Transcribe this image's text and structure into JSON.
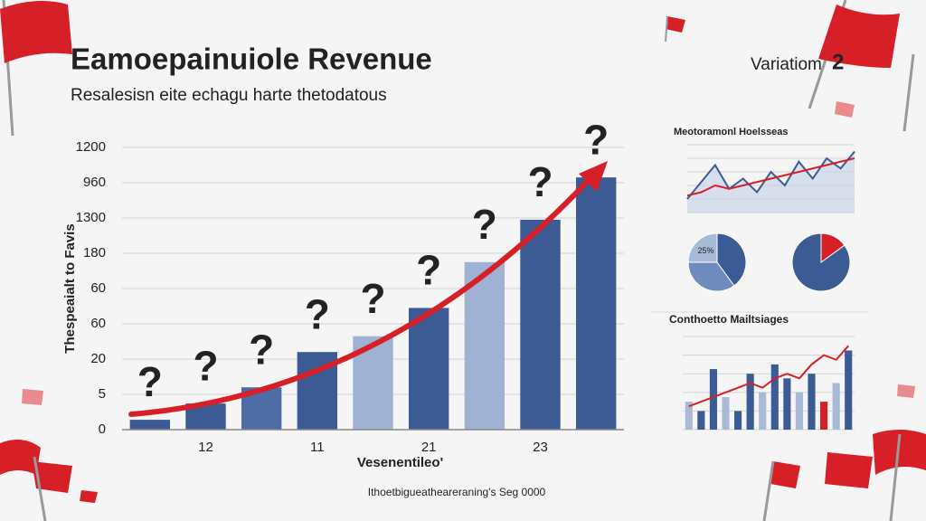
{
  "header": {
    "title": "Eamoepainuiole Revenue",
    "subtitle": "Resalesisn eite echagu harte thetodatous",
    "badge": "Variatiom",
    "badge_number": "2"
  },
  "footer": "Ithoetbigueatheareraning's Seg 0000",
  "chart_data": [
    {
      "type": "bar",
      "y_label": "Thespeaialt to Favis",
      "x_label": "Vesenentileo'",
      "categories": [
        null,
        "12",
        null,
        "11",
        null,
        "21",
        null,
        "23",
        null
      ],
      "values": [
        0.28,
        0.74,
        1.2,
        2.2,
        2.65,
        3.45,
        4.75,
        5.95,
        7.15
      ],
      "colors": [
        "#3c5b94",
        "#3c5b94",
        "#4e6ca6",
        "#3c5b94",
        "#9fb2d3",
        "#3c5b94",
        "#9fb2d3",
        "#3c5b94",
        "#3c5b94"
      ],
      "annotations": [
        "?",
        "?",
        "?",
        "?",
        "?",
        "?",
        "?",
        "?",
        "?"
      ],
      "annotation_colors": [
        "#1f3b6e",
        "#1f3b6e",
        "#1f3b6e",
        "#1f3b6e",
        "#1f3b6e",
        "#1f3b6e",
        "#1f3b6e",
        "#1f3b6e",
        "#d61f26"
      ],
      "ylim": [
        0,
        8
      ],
      "yticks": [
        0,
        1,
        2,
        3,
        4,
        5,
        6,
        7,
        8
      ],
      "y_axis_labels": [
        "0",
        "5",
        "20",
        "60",
        "60",
        "180",
        "1300",
        "960",
        "1200"
      ],
      "grid": true
    },
    {
      "type": "line",
      "title": "Meotoramonl Hoelsseas",
      "series": [
        {
          "color": "#3c5b94",
          "values": [
            2,
            4.5,
            7,
            3.5,
            5,
            3,
            6,
            4,
            7.5,
            5,
            8,
            6.5,
            9
          ]
        },
        {
          "color": "#d61f26",
          "values": [
            2.5,
            3,
            4,
            3.5,
            4,
            4.5,
            5,
            5.5,
            6,
            6.5,
            7,
            7.5,
            8
          ]
        }
      ],
      "ylim": [
        0,
        10
      ],
      "yticks": [
        0,
        2,
        4,
        6,
        8,
        10
      ],
      "grid": true
    },
    {
      "type": "pie",
      "values": [
        40,
        35,
        25
      ],
      "colors": [
        "#3c5b94",
        "#6f8bbd",
        "#a9bad8"
      ],
      "value_labels": [
        null,
        null,
        "25%"
      ]
    },
    {
      "type": "pie",
      "values": [
        15,
        85
      ],
      "colors": [
        "#d61f26",
        "#3c5b94"
      ]
    },
    {
      "type": "combo",
      "title": "Conthoetto Mailtsiages",
      "values": [
        3,
        2,
        6.5,
        3.5,
        2,
        6,
        4,
        7,
        5.5,
        4,
        6,
        3,
        5,
        8.5
      ],
      "colors": [
        "#a9bad8",
        "#3c5b94",
        "#3c5b94",
        "#a9bad8",
        "#3c5b94",
        "#3c5b94",
        "#a9bad8",
        "#3c5b94",
        "#3c5b94",
        "#a9bad8",
        "#3c5b94",
        "#d61f26",
        "#a9bad8",
        "#3c5b94"
      ],
      "line": [
        2.5,
        3,
        3.5,
        4,
        4.5,
        5,
        4.5,
        5.5,
        6,
        5.5,
        7,
        8,
        7.5,
        9
      ],
      "line_color": "#d61f26",
      "ylim": [
        0,
        10
      ],
      "yticks": [
        0,
        2,
        4,
        6,
        8,
        10
      ],
      "grid": true
    }
  ]
}
